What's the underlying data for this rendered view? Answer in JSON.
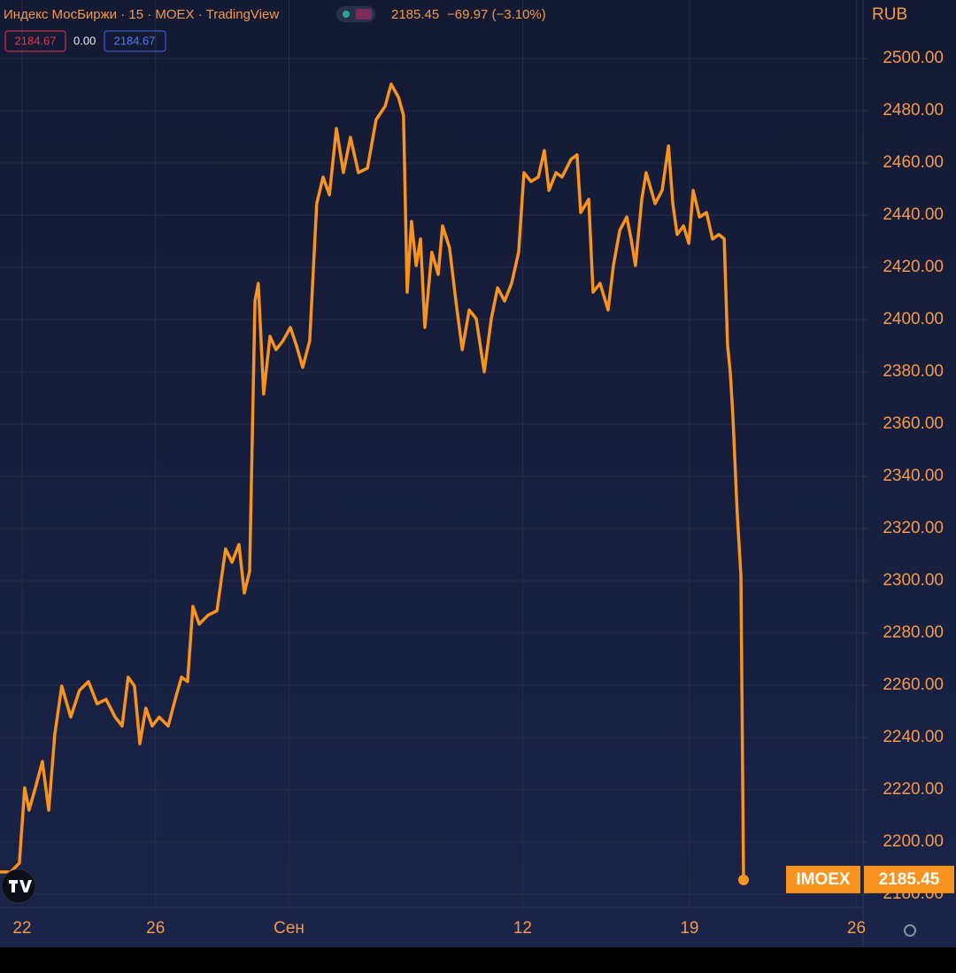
{
  "chart_data": {
    "type": "line",
    "title": "Индекс МосБиржи · 15 · MOEX · TradingView",
    "header_change": "−69.97 (−3.10%)",
    "legend_boxes": [
      "2184.67",
      "0.00",
      "2184.67"
    ],
    "currency": "RUB",
    "x": [
      -0.66,
      -0.34,
      -0.08,
      0.08,
      0.21,
      0.4,
      0.61,
      0.8,
      0.98,
      1.19,
      1.46,
      1.72,
      1.99,
      2.25,
      2.52,
      2.79,
      3.0,
      3.18,
      3.37,
      3.53,
      3.71,
      3.9,
      4.11,
      4.38,
      4.59,
      4.78,
      4.96,
      5.12,
      5.31,
      5.57,
      5.84,
      6.1,
      6.29,
      6.5,
      6.66,
      6.82,
      6.98,
      7.08,
      7.24,
      7.43,
      7.61,
      7.82,
      8.04,
      8.22,
      8.41,
      8.62,
      8.83,
      9.02,
      9.21,
      9.42,
      9.63,
      9.84,
      10.08,
      10.35,
      10.61,
      10.88,
      11.06,
      11.28,
      11.43,
      11.54,
      11.67,
      11.81,
      11.94,
      12.07,
      12.28,
      12.47,
      12.6,
      12.81,
      13.0,
      13.19,
      13.4,
      13.61,
      13.85,
      14.06,
      14.25,
      14.46,
      14.67,
      14.88,
      15.04,
      15.25,
      15.47,
      15.65,
      15.79,
      16.0,
      16.18,
      16.45,
      16.63,
      16.74,
      16.98,
      17.11,
      17.32,
      17.56,
      17.72,
      17.91,
      18.12,
      18.25,
      18.38,
      18.57,
      18.7,
      18.97,
      19.18,
      19.37,
      19.5,
      19.63,
      19.82,
      19.98,
      20.11,
      20.3,
      20.51,
      20.69,
      20.88,
      21.04,
      21.14,
      21.22,
      21.3,
      21.43,
      21.54,
      21.62
    ],
    "series": [
      {
        "name": "IMOEX",
        "color": "#f7931e",
        "values": [
          2188.5,
          2188.5,
          2191.9,
          2220.7,
          2212.2,
          2220.7,
          2230.8,
          2212.2,
          2241.0,
          2259.7,
          2247.8,
          2258.0,
          2261.4,
          2252.9,
          2254.6,
          2247.8,
          2244.4,
          2263.1,
          2259.7,
          2237.6,
          2251.2,
          2244.4,
          2247.8,
          2244.4,
          2254.6,
          2263.1,
          2261.4,
          2290.2,
          2283.4,
          2286.8,
          2288.5,
          2312.2,
          2307.1,
          2313.9,
          2295.3,
          2303.7,
          2407.1,
          2413.9,
          2371.5,
          2393.6,
          2388.5,
          2391.9,
          2397.0,
          2390.2,
          2381.7,
          2391.9,
          2444.4,
          2454.6,
          2447.8,
          2473.2,
          2456.3,
          2469.8,
          2456.3,
          2458.0,
          2476.6,
          2481.7,
          2490.2,
          2485.1,
          2478.3,
          2410.5,
          2437.6,
          2420.7,
          2430.9,
          2397.0,
          2425.8,
          2417.3,
          2435.9,
          2427.5,
          2407.1,
          2388.5,
          2403.7,
          2400.3,
          2380.0,
          2400.3,
          2412.2,
          2407.1,
          2413.9,
          2425.8,
          2456.3,
          2452.9,
          2454.6,
          2464.8,
          2449.5,
          2456.3,
          2454.6,
          2461.4,
          2463.1,
          2441.0,
          2446.1,
          2410.5,
          2413.9,
          2403.7,
          2420.7,
          2434.2,
          2439.3,
          2430.9,
          2420.7,
          2446.1,
          2456.3,
          2444.4,
          2449.5,
          2466.5,
          2444.4,
          2432.6,
          2435.9,
          2429.2,
          2449.5,
          2439.3,
          2441.0,
          2430.9,
          2432.6,
          2430.9,
          2390.2,
          2380.0,
          2363.1,
          2325.8,
          2302.0,
          2185.45
        ]
      }
    ],
    "xlim": [
      -0.66,
      25.2
    ],
    "xticks": [
      {
        "value": 0,
        "label": "22"
      },
      {
        "value": 4,
        "label": "26"
      },
      {
        "value": 8,
        "label": "Сен"
      },
      {
        "value": 15,
        "label": "12"
      },
      {
        "value": 20,
        "label": "19"
      },
      {
        "value": 25,
        "label": "26"
      }
    ],
    "ylim": [
      2174.9,
      2522.4
    ],
    "yticks": [
      {
        "value": 2180,
        "label": "2180.00"
      },
      {
        "value": 2200,
        "label": "2200.00"
      },
      {
        "value": 2220,
        "label": "2220.00"
      },
      {
        "value": 2240,
        "label": "2240.00"
      },
      {
        "value": 2260,
        "label": "2260.00"
      },
      {
        "value": 2280,
        "label": "2280.00"
      },
      {
        "value": 2300,
        "label": "2300.00"
      },
      {
        "value": 2320,
        "label": "2320.00"
      },
      {
        "value": 2340,
        "label": "2340.00"
      },
      {
        "value": 2360,
        "label": "2360.00"
      },
      {
        "value": 2380,
        "label": "2380.00"
      },
      {
        "value": 2400,
        "label": "2400.00"
      },
      {
        "value": 2420,
        "label": "2420.00"
      },
      {
        "value": 2440,
        "label": "2440.00"
      },
      {
        "value": 2460,
        "label": "2460.00"
      },
      {
        "value": 2480,
        "label": "2480.00"
      },
      {
        "value": 2500,
        "label": "2500.00"
      }
    ],
    "grid": true
  }
}
